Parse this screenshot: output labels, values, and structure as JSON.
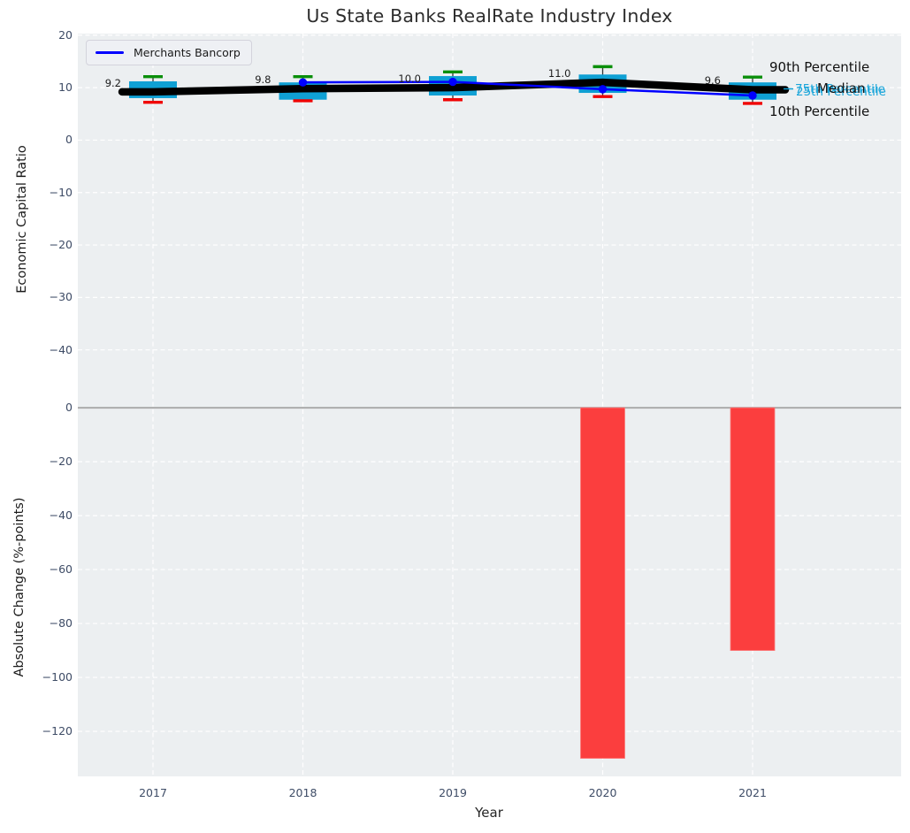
{
  "title": "Us State Banks RealRate Industry Index",
  "legend": {
    "label": "Merchants Bancorp",
    "line_color": "#0000ff"
  },
  "labels": {
    "p90": "90th Percentile",
    "p75": "75th Percentile",
    "median": "Median",
    "p25": "25th Percentile",
    "p10": "10th Percentile"
  },
  "colors": {
    "plot_background": "#eceff1",
    "grid": "#ffffff",
    "box_fill": "#0fa0d4",
    "whisker": "#333333",
    "cap_p90": "#0a8f0a",
    "cap_p10": "#f00000",
    "median_trend": "#000000",
    "company_line": "#0000ff",
    "bar": "#fb3e3e",
    "zero_line": "#ababab",
    "tick_text": "#3e4c66"
  },
  "chart_data": [
    {
      "type": "box",
      "panel": "top",
      "ylabel": "Economic Capital Ratio",
      "categories": [
        "2017",
        "2018",
        "2019",
        "2020",
        "2021"
      ],
      "ylim": [
        -50.0,
        20.3
      ],
      "yticks": [
        20,
        10,
        0,
        -10,
        -20,
        -30,
        -40
      ],
      "grid": true,
      "legend_position": "upper left",
      "boxes": [
        {
          "year": "2017",
          "p90": 12.1,
          "q3": 11.2,
          "median": 9.2,
          "q1": 8.0,
          "p10": 7.2
        },
        {
          "year": "2018",
          "p90": 12.1,
          "q3": 11.0,
          "median": 9.8,
          "q1": 7.7,
          "p10": 7.5
        },
        {
          "year": "2019",
          "p90": 13.0,
          "q3": 12.2,
          "median": 10.0,
          "q1": 8.5,
          "p10": 7.7
        },
        {
          "year": "2020",
          "p90": 14.0,
          "q3": 12.5,
          "median": 11.0,
          "q1": 9.0,
          "p10": 8.3
        },
        {
          "year": "2021",
          "p90": 12.0,
          "q3": 11.0,
          "median": 9.6,
          "q1": 7.7,
          "p10": 7.0
        }
      ],
      "median_labels": [
        "9.2",
        "9.8",
        "10.0",
        "11.0",
        "9.6"
      ],
      "series": [
        {
          "name": "Merchants Bancorp",
          "x": [
            "2018",
            "2019",
            "2020",
            "2021"
          ],
          "values": [
            11.0,
            11.1,
            9.7,
            8.5
          ]
        }
      ]
    },
    {
      "type": "bar",
      "panel": "bottom",
      "xlabel": "Year",
      "ylabel": "Absolute Change (%-points)",
      "categories": [
        "2017",
        "2018",
        "2019",
        "2020",
        "2021"
      ],
      "values": [
        null,
        null,
        null,
        -130,
        -90
      ],
      "ylim": [
        -136.7,
        2
      ],
      "yticks": [
        0,
        -20,
        -40,
        -60,
        -80,
        -100,
        -120
      ],
      "grid": true
    }
  ]
}
